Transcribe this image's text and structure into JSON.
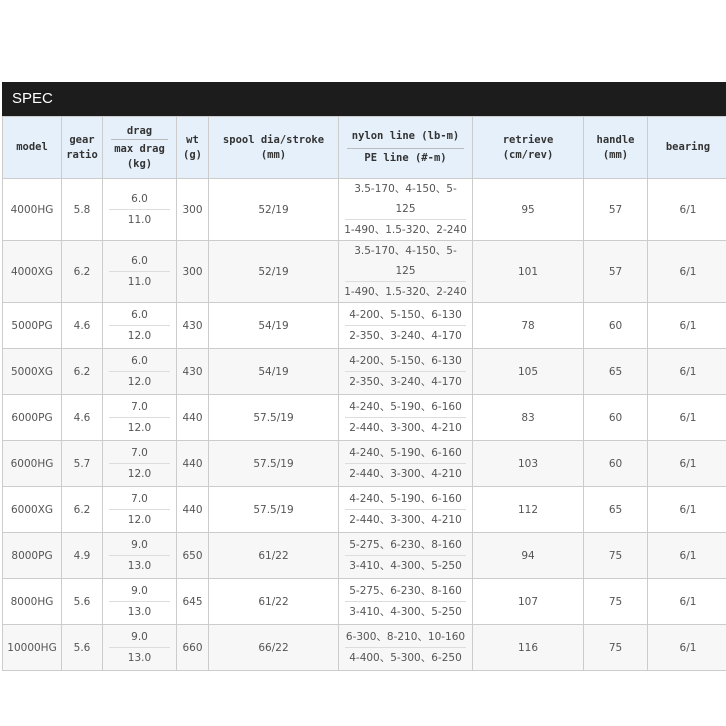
{
  "title": "SPEC",
  "headers": {
    "model": "model",
    "gear": [
      "gear",
      "ratio"
    ],
    "drag_top": "drag",
    "drag_bottom": [
      "max drag",
      "(kg)"
    ],
    "wt": [
      "wt",
      "(g)"
    ],
    "spool": [
      "spool dia/stroke",
      "(mm)"
    ],
    "line_top": "nylon line (lb-m)",
    "line_bottom": "PE line (#-m)",
    "retrieve": [
      "retrieve",
      "(cm/rev)"
    ],
    "handle": [
      "handle",
      "(mm)"
    ],
    "bearing": "bearing"
  },
  "rows": [
    {
      "model": "4000HG",
      "gear": "5.8",
      "drag": "6.0",
      "max_drag": "11.0",
      "wt": "300",
      "spool": "52/19",
      "nylon": "3.5-170、4-150、5-125",
      "pe": "1-490、1.5-320、2-240",
      "retrieve": "95",
      "handle": "57",
      "bearing": "6/1"
    },
    {
      "model": "4000XG",
      "gear": "6.2",
      "drag": "6.0",
      "max_drag": "11.0",
      "wt": "300",
      "spool": "52/19",
      "nylon": "3.5-170、4-150、5-125",
      "pe": "1-490、1.5-320、2-240",
      "retrieve": "101",
      "handle": "57",
      "bearing": "6/1"
    },
    {
      "model": "5000PG",
      "gear": "4.6",
      "drag": "6.0",
      "max_drag": "12.0",
      "wt": "430",
      "spool": "54/19",
      "nylon": "4-200、5-150、6-130",
      "pe": "2-350、3-240、4-170",
      "retrieve": "78",
      "handle": "60",
      "bearing": "6/1"
    },
    {
      "model": "5000XG",
      "gear": "6.2",
      "drag": "6.0",
      "max_drag": "12.0",
      "wt": "430",
      "spool": "54/19",
      "nylon": "4-200、5-150、6-130",
      "pe": "2-350、3-240、4-170",
      "retrieve": "105",
      "handle": "65",
      "bearing": "6/1"
    },
    {
      "model": "6000PG",
      "gear": "4.6",
      "drag": "7.0",
      "max_drag": "12.0",
      "wt": "440",
      "spool": "57.5/19",
      "nylon": "4-240、5-190、6-160",
      "pe": "2-440、3-300、4-210",
      "retrieve": "83",
      "handle": "60",
      "bearing": "6/1"
    },
    {
      "model": "6000HG",
      "gear": "5.7",
      "drag": "7.0",
      "max_drag": "12.0",
      "wt": "440",
      "spool": "57.5/19",
      "nylon": "4-240、5-190、6-160",
      "pe": "2-440、3-300、4-210",
      "retrieve": "103",
      "handle": "60",
      "bearing": "6/1"
    },
    {
      "model": "6000XG",
      "gear": "6.2",
      "drag": "7.0",
      "max_drag": "12.0",
      "wt": "440",
      "spool": "57.5/19",
      "nylon": "4-240、5-190、6-160",
      "pe": "2-440、3-300、4-210",
      "retrieve": "112",
      "handle": "65",
      "bearing": "6/1"
    },
    {
      "model": "8000PG",
      "gear": "4.9",
      "drag": "9.0",
      "max_drag": "13.0",
      "wt": "650",
      "spool": "61/22",
      "nylon": "5-275、6-230、8-160",
      "pe": "3-410、4-300、5-250",
      "retrieve": "94",
      "handle": "75",
      "bearing": "6/1"
    },
    {
      "model": "8000HG",
      "gear": "5.6",
      "drag": "9.0",
      "max_drag": "13.0",
      "wt": "645",
      "spool": "61/22",
      "nylon": "5-275、6-230、8-160",
      "pe": "3-410、4-300、5-250",
      "retrieve": "107",
      "handle": "75",
      "bearing": "6/1"
    },
    {
      "model": "10000HG",
      "gear": "5.6",
      "drag": "9.0",
      "max_drag": "13.0",
      "wt": "660",
      "spool": "66/22",
      "nylon": "6-300、8-210、10-160",
      "pe": "4-400、5-300、6-250",
      "retrieve": "116",
      "handle": "75",
      "bearing": "6/1"
    }
  ]
}
